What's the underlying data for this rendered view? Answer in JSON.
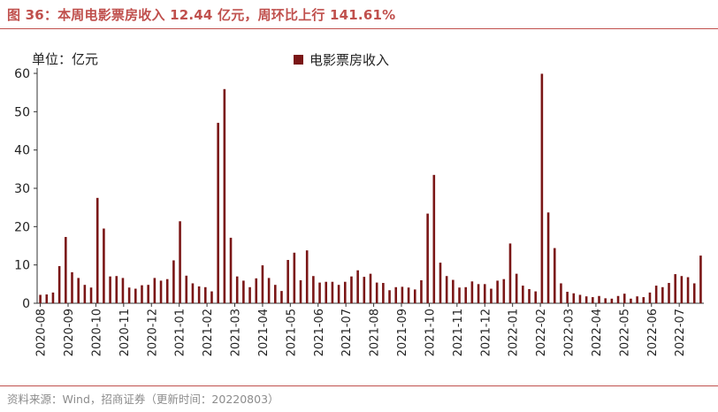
{
  "title": "图 36：本周电影票房收入 12.44 亿元，周环比上行 141.61%",
  "unit_label": "单位：亿元",
  "source": "资料来源：Wind，招商证券（更新时间：20220803）",
  "colors": {
    "accent": "#c0504d",
    "bar": "#7a1616"
  },
  "chart_data": {
    "type": "bar",
    "title": "图 36：本周电影票房收入 12.44 亿元，周环比上行 141.61%",
    "ylabel": "单位：亿元",
    "ylim": [
      0,
      60
    ],
    "yticks": [
      0,
      10,
      20,
      30,
      40,
      50,
      60
    ],
    "grid": false,
    "legend_position": "top-center",
    "x_tick_labels": [
      "2020-08",
      "2020-09",
      "2020-10",
      "2020-11",
      "2020-12",
      "2021-01",
      "2021-02",
      "2021-03",
      "2021-04",
      "2021-05",
      "2021-06",
      "2021-07",
      "2021-08",
      "2021-09",
      "2021-10",
      "2021-11",
      "2021-12",
      "2022-01",
      "2022-02",
      "2022-03",
      "2022-04",
      "2022-05",
      "2022-06",
      "2022-07"
    ],
    "series": [
      {
        "name": "电影票房收入",
        "values": [
          2.2,
          2.3,
          2.8,
          9.7,
          17.3,
          8.1,
          6.6,
          4.8,
          4.1,
          27.5,
          19.5,
          7.0,
          7.1,
          6.6,
          4.1,
          3.8,
          4.7,
          4.8,
          6.6,
          5.9,
          6.3,
          11.2,
          21.4,
          7.2,
          5.2,
          4.4,
          4.2,
          3.1,
          47.1,
          55.9,
          17.1,
          7.0,
          5.9,
          4.2,
          6.5,
          9.9,
          6.6,
          4.8,
          3.2,
          11.3,
          13.2,
          6.0,
          13.8,
          7.1,
          5.4,
          5.6,
          5.6,
          4.8,
          5.6,
          7.0,
          8.6,
          6.9,
          7.7,
          5.4,
          5.3,
          3.4,
          4.2,
          4.3,
          4.1,
          3.6,
          6.0,
          23.4,
          33.5,
          10.6,
          7.1,
          6.1,
          4.1,
          4.2,
          5.7,
          5.0,
          5.0,
          3.8,
          5.9,
          6.3,
          15.6,
          7.7,
          4.6,
          3.7,
          3.1,
          59.9,
          23.7,
          14.4,
          5.2,
          3.0,
          2.6,
          2.2,
          1.8,
          1.6,
          1.9,
          1.3,
          1.2,
          1.9,
          2.5,
          1.2,
          1.8,
          1.6,
          2.8,
          4.6,
          4.2,
          5.3,
          7.6,
          7.1,
          6.8,
          5.2,
          12.44
        ]
      }
    ]
  }
}
